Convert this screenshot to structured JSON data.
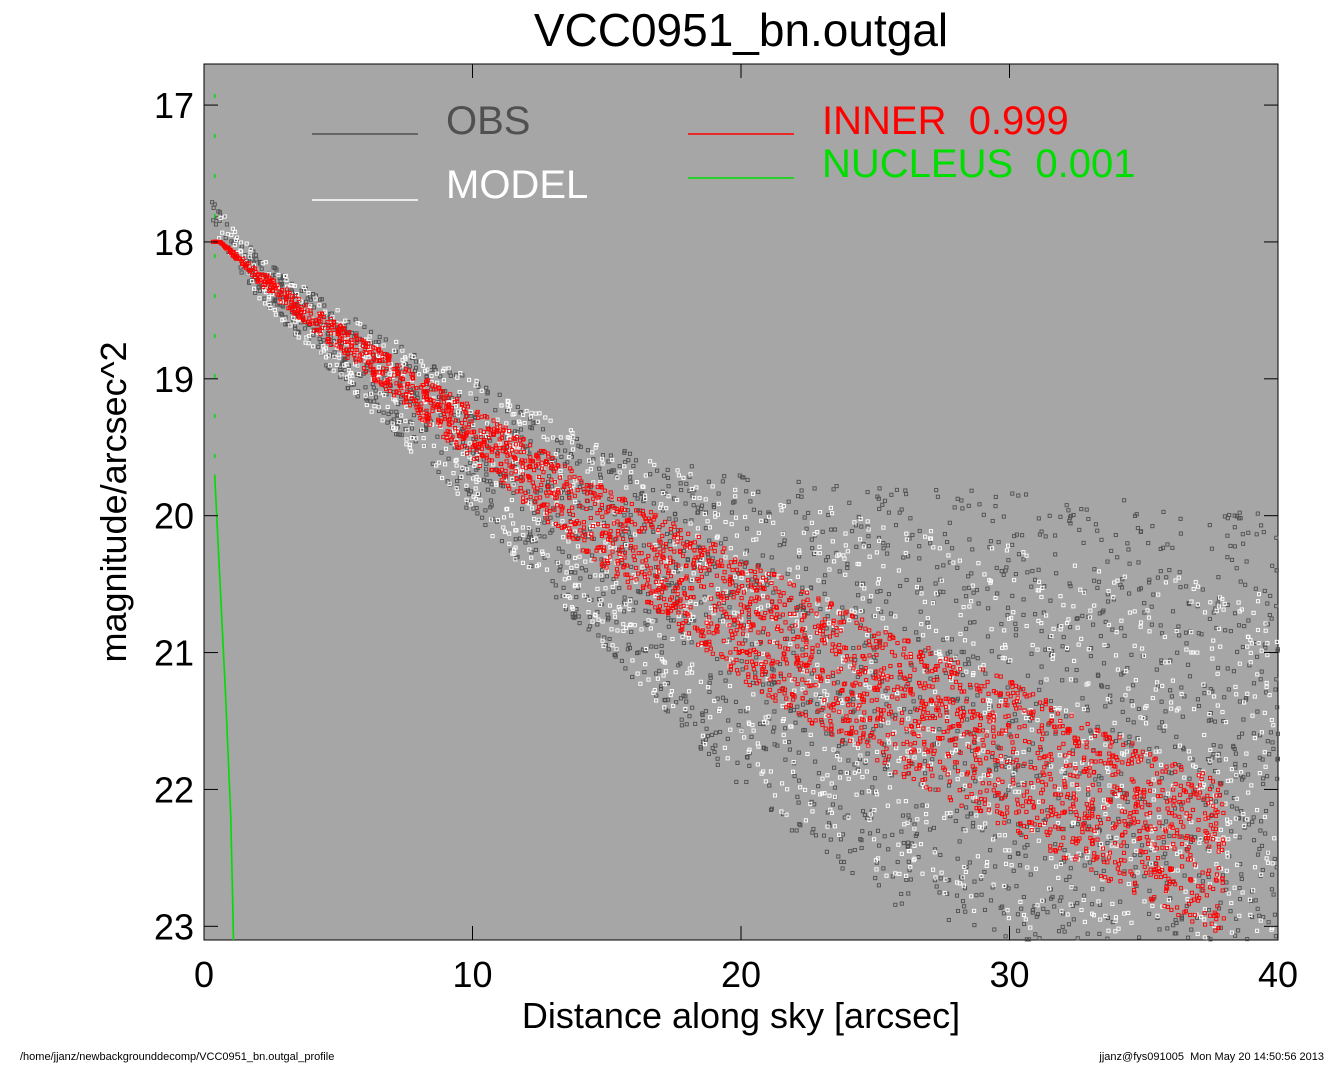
{
  "chart_data": {
    "type": "scatter",
    "title": "VCC0951_bn.outgal",
    "xlabel": "Distance along sky [arcsec]",
    "ylabel": "magnitude/arcsec^2",
    "xlim": [
      0,
      40
    ],
    "ylim": [
      23.1,
      16.7
    ],
    "y_inverted": true,
    "x_ticks": [
      "0",
      "10",
      "20",
      "30",
      "40"
    ],
    "y_ticks": [
      "17",
      "18",
      "19",
      "20",
      "21",
      "22",
      "23"
    ],
    "background_color": "#a6a6a6",
    "grid": false,
    "legend": [
      {
        "name": "OBS",
        "color": "#505050",
        "location": "top-left"
      },
      {
        "name": "MODEL",
        "color": "#ffffff",
        "location": "top-left"
      },
      {
        "name": "INNER",
        "value": "0.999",
        "color": "#ff0000",
        "location": "top-center"
      },
      {
        "name": "NUCLEUS",
        "value": "0.001",
        "color": "#00dd00",
        "location": "top-center"
      }
    ],
    "series": [
      {
        "name": "OBS",
        "marker": "square",
        "color": "#505050",
        "upper_envelope": {
          "x": [
            0.3,
            2,
            5,
            10,
            15,
            20,
            25,
            30,
            35,
            40
          ],
          "y": [
            17.7,
            18.1,
            18.5,
            19.0,
            19.5,
            19.7,
            19.8,
            19.8,
            19.9,
            20.0
          ]
        },
        "lower_envelope": {
          "x": [
            0.3,
            2,
            5,
            10,
            15,
            20,
            25,
            30,
            35,
            40
          ],
          "y": [
            17.9,
            18.4,
            19.0,
            20.0,
            21.0,
            22.0,
            22.8,
            23.1,
            23.1,
            23.1
          ]
        }
      },
      {
        "name": "MODEL",
        "marker": "square",
        "color": "#ffffff",
        "upper_envelope": {
          "x": [
            0.3,
            2,
            5,
            10,
            15,
            20,
            25,
            30,
            35,
            40
          ],
          "y": [
            17.7,
            18.1,
            18.5,
            19.0,
            19.5,
            19.8,
            20.0,
            20.2,
            20.4,
            20.6
          ]
        },
        "lower_envelope": {
          "x": [
            0.3,
            2,
            5,
            10,
            15,
            20,
            25,
            30,
            35,
            40
          ],
          "y": [
            17.9,
            18.4,
            19.0,
            20.0,
            21.0,
            22.0,
            22.6,
            23.0,
            23.1,
            23.1
          ]
        }
      },
      {
        "name": "INNER",
        "fraction": "0.999",
        "marker": "square",
        "color": "#ff0000",
        "upper_edge": {
          "x": [
            0.6,
            2,
            5,
            10,
            15,
            20,
            25,
            30,
            35,
            40
          ],
          "y": [
            18.0,
            18.2,
            18.6,
            19.2,
            19.8,
            20.3,
            20.8,
            21.2,
            21.7,
            22.1
          ]
        },
        "lower_edge": {
          "x": [
            0.6,
            2,
            5,
            10,
            15,
            20,
            25,
            30,
            35,
            38
          ],
          "y": [
            18.0,
            18.3,
            18.8,
            19.6,
            20.4,
            21.2,
            21.8,
            22.3,
            22.8,
            23.1
          ]
        }
      },
      {
        "name": "NUCLEUS",
        "fraction": "0.001",
        "color": "#00dd00",
        "line": {
          "x": [
            0.4,
            0.6,
            0.8,
            1.0,
            1.1
          ],
          "y": [
            19.7,
            20.5,
            21.3,
            22.2,
            23.1
          ]
        },
        "dashed_segment": {
          "x": [
            0.4,
            0.4
          ],
          "y": [
            16.7,
            19.7
          ]
        }
      }
    ]
  },
  "footer": {
    "left": "/home/jjanz/newbackgrounddecomp/VCC0951_bn.outgal_profile",
    "right": "jjanz@fys091005  Mon May 20 14:50:56 2013"
  }
}
